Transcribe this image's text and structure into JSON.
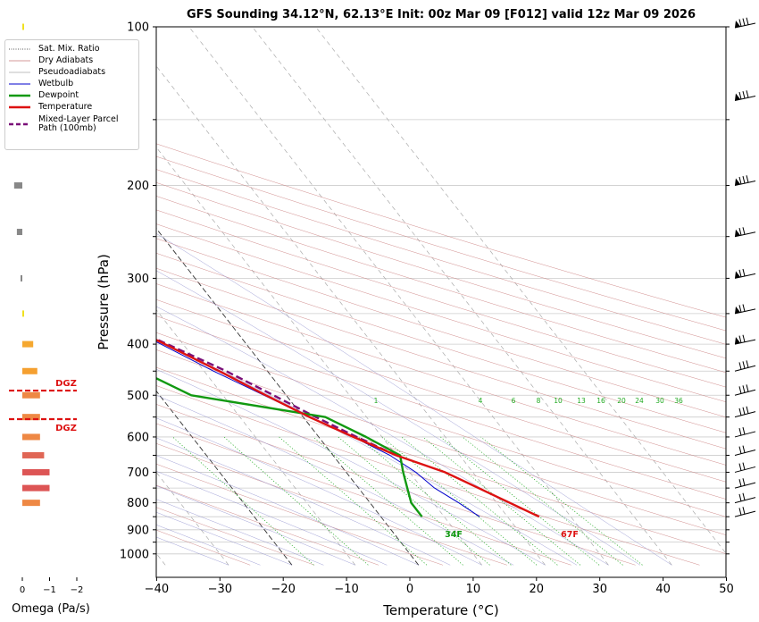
{
  "title": "GFS Sounding 34.12°N, 62.13°E Init: 00z Mar 09 [F012] valid 12z Mar 09 2026",
  "colors": {
    "temperature": "#dd1111",
    "dewpoint": "#119911",
    "wetbulb": "#0000cc",
    "parcel": "#7a0f78",
    "dry_adiabat": "#c87878",
    "pseudoadiabat": "#8888cc",
    "mixing_ratio": "#22aa22",
    "isotherm": "#333333",
    "dgz": "#dd1111"
  },
  "legend": [
    {
      "label": "Sat. Mix. Ratio",
      "style": "dotted",
      "color": "#555555"
    },
    {
      "label": "Dry Adiabats",
      "style": "solid",
      "color": "#c87878"
    },
    {
      "label": "Pseudoadiabats",
      "style": "solid",
      "color": "#aaaaaa"
    },
    {
      "label": "Wetbulb",
      "style": "solid",
      "color": "#0000cc"
    },
    {
      "label": "Dewpoint",
      "style": "solid-thick",
      "color": "#119911"
    },
    {
      "label": "Temperature",
      "style": "solid-thick",
      "color": "#dd1111"
    },
    {
      "label": "Mixed-Layer Parcel Path (100mb)",
      "style": "dashed-thick",
      "color": "#7a0f78"
    }
  ],
  "omega_panel": {
    "xlabel": "Omega (Pa/s)",
    "ticks": [
      "0",
      "−1",
      "−2"
    ],
    "dgz_label": "DGZ",
    "dgz_levels": [
      490,
      555
    ],
    "bars": [
      {
        "p": 100,
        "value": -0.05,
        "color": "#f0e020"
      },
      {
        "p": 138,
        "value": 0.25,
        "color": "#888888"
      },
      {
        "p": 200,
        "value": 0.3,
        "color": "#888888"
      },
      {
        "p": 245,
        "value": 0.2,
        "color": "#888888"
      },
      {
        "p": 300,
        "value": 0.03,
        "color": "#888888"
      },
      {
        "p": 350,
        "value": -0.05,
        "color": "#f0e020"
      },
      {
        "p": 400,
        "value": -0.4,
        "color": "#f5a830"
      },
      {
        "p": 450,
        "value": -0.55,
        "color": "#f5a030"
      },
      {
        "p": 500,
        "value": -0.65,
        "color": "#ee8844"
      },
      {
        "p": 550,
        "value": -0.65,
        "color": "#ee8844"
      },
      {
        "p": 600,
        "value": -0.65,
        "color": "#ee8844"
      },
      {
        "p": 650,
        "value": -0.8,
        "color": "#e06655"
      },
      {
        "p": 700,
        "value": -1.0,
        "color": "#dd5555"
      },
      {
        "p": 750,
        "value": -1.0,
        "color": "#dd5555"
      },
      {
        "p": 800,
        "value": -0.65,
        "color": "#ee8844"
      }
    ]
  },
  "chart_data": {
    "type": "line",
    "title": "GFS Sounding 34.12°N, 62.13°E Init: 00z Mar 09 [F012] valid 12z Mar 09 2026",
    "xlabel": "Temperature (°C)",
    "ylabel": "Pressure (hPa)",
    "xlim": [
      -40,
      50
    ],
    "ylim": [
      1050,
      100
    ],
    "y_scale": "log",
    "x_ticks": [
      "−40",
      "−30",
      "−20",
      "−10",
      "0",
      "10",
      "20",
      "30",
      "40",
      "50"
    ],
    "y_ticks": [
      "100",
      "200",
      "300",
      "400",
      "500",
      "600",
      "700",
      "800",
      "900",
      "1000"
    ],
    "mixing_ratio_labels": [
      "1",
      "4",
      "6",
      "8",
      "10",
      "13",
      "16",
      "20",
      "24",
      "30",
      "36"
    ],
    "surface_temp_label": "67F",
    "surface_dewpoint_label": "34F",
    "series": [
      {
        "name": "Temperature",
        "points": [
          [
            850,
            25.0
          ],
          [
            700,
            15.6
          ],
          [
            650,
            10.0
          ],
          [
            600,
            5.5
          ],
          [
            550,
            1.0
          ],
          [
            500,
            -3.2
          ],
          [
            450,
            -7.6
          ],
          [
            400,
            -12.9
          ],
          [
            350,
            -18.8
          ],
          [
            300,
            -25.3
          ],
          [
            250,
            -33.6
          ],
          [
            200,
            -40.3
          ],
          [
            150,
            -48.5
          ],
          [
            100,
            -60.0
          ]
        ]
      },
      {
        "name": "Dewpoint",
        "points": [
          [
            850,
            6.5
          ],
          [
            800,
            6.5
          ],
          [
            750,
            7.7
          ],
          [
            700,
            9.0
          ],
          [
            650,
            10.6
          ],
          [
            600,
            7.5
          ],
          [
            550,
            3.5
          ],
          [
            500,
            -15.0
          ],
          [
            450,
            -19.9
          ],
          [
            400,
            -26.0
          ],
          [
            350,
            -35.0
          ],
          [
            300,
            -40.0
          ],
          [
            250,
            -45.0
          ],
          [
            200,
            -52.0
          ],
          [
            150,
            -62.0
          ],
          [
            100,
            -70.0
          ]
        ]
      },
      {
        "name": "Wetbulb",
        "points": [
          [
            850,
            15.6
          ],
          [
            800,
            14.0
          ],
          [
            750,
            12.0
          ],
          [
            700,
            11.0
          ],
          [
            650,
            9.0
          ],
          [
            600,
            5.5
          ],
          [
            550,
            1.0
          ],
          [
            500,
            -3.5
          ],
          [
            450,
            -8.5
          ],
          [
            400,
            -13.5
          ],
          [
            350,
            -19.2
          ],
          [
            300,
            -25.8
          ],
          [
            250,
            -33.6
          ],
          [
            200,
            -40.3
          ],
          [
            150,
            -48.5
          ],
          [
            100,
            -60.0
          ]
        ]
      },
      {
        "name": "Mixed-Layer Parcel Path (100mb)",
        "points": [
          [
            650,
            10.0
          ],
          [
            600,
            6.0
          ],
          [
            550,
            2.0
          ],
          [
            500,
            -2.0
          ],
          [
            450,
            -6.5
          ],
          [
            400,
            -12.5
          ],
          [
            350,
            -19.5
          ],
          [
            300,
            -27.5
          ],
          [
            250,
            -37.5
          ],
          [
            200,
            -50.0
          ],
          [
            150,
            -67.0
          ],
          [
            100,
            -90.0
          ]
        ]
      }
    ]
  }
}
